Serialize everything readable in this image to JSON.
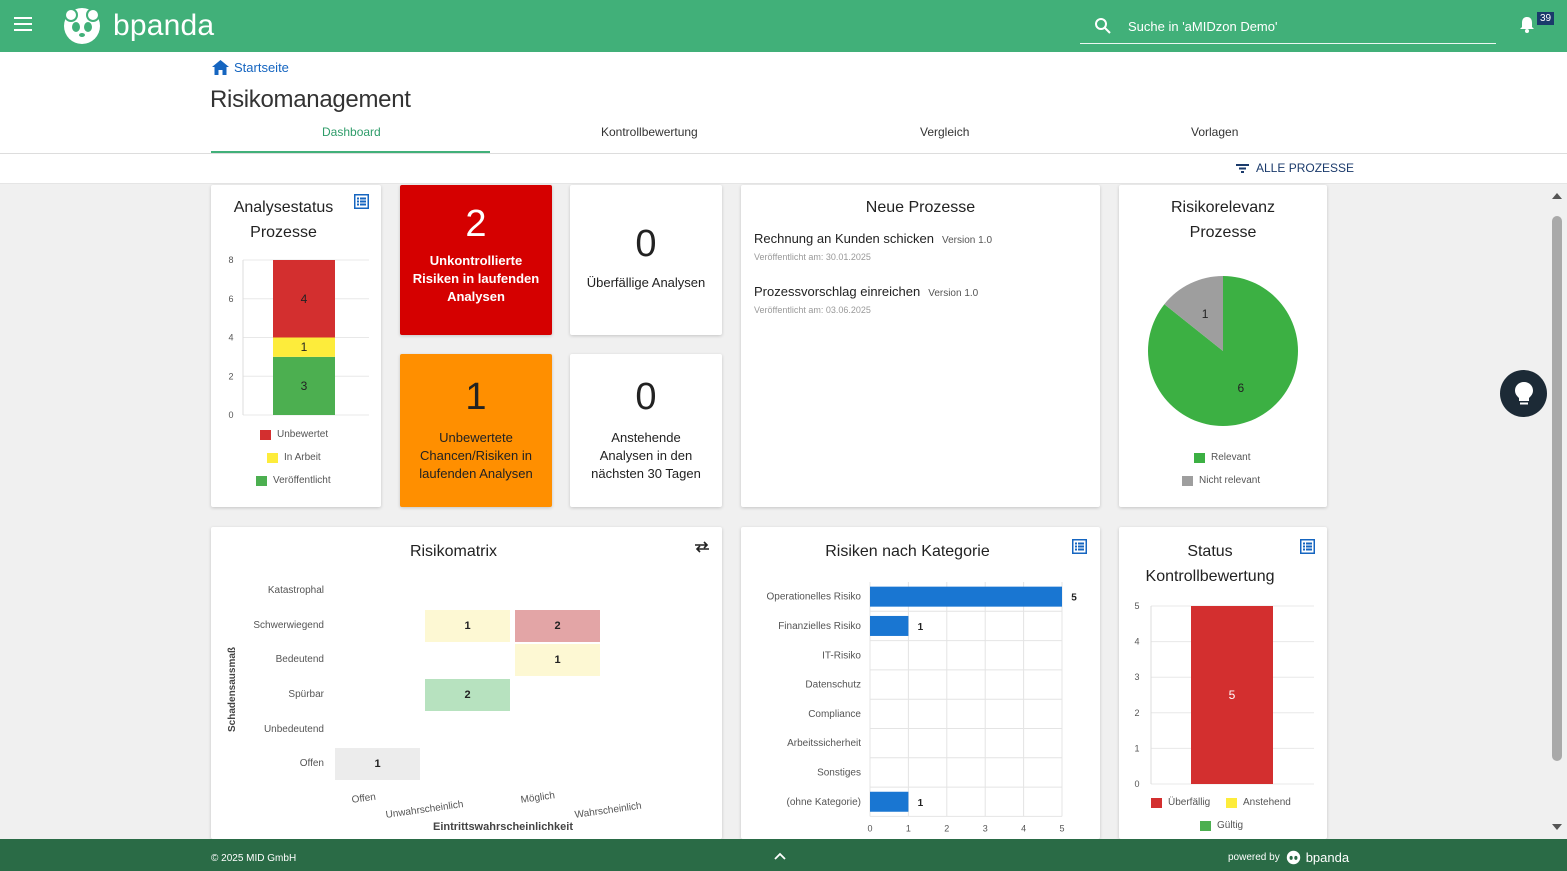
{
  "header": {
    "logo": "bpanda",
    "search_placeholder": "Suche in 'aMIDzon Demo'",
    "notification_count": "39"
  },
  "breadcrumb": {
    "home": "Startseite"
  },
  "page_title": "Risikomanagement",
  "tabs": [
    {
      "label": "Dashboard",
      "active": true
    },
    {
      "label": "Kontrollbewertung"
    },
    {
      "label": "Vergleich"
    },
    {
      "label": "Vorlagen"
    }
  ],
  "filter_label": "ALLE PROZESSE",
  "analysestatus": {
    "title_line1": "Analysestatus",
    "title_line2": "Prozesse",
    "yticks": [
      "8",
      "6",
      "4",
      "2",
      "0"
    ],
    "legend": [
      {
        "label": "Unbewertet",
        "color": "#d32f2f"
      },
      {
        "label": "In Arbeit",
        "color": "#fdec3b"
      },
      {
        "label": "Veröffentlicht",
        "color": "#4caf50"
      }
    ]
  },
  "kpis": [
    {
      "value": "2",
      "label": "Unkontrollierte Risiken in laufenden Analysen",
      "bg": "#d50000"
    },
    {
      "value": "0",
      "label": "Überfällige Analysen",
      "bg": "#ffffff"
    },
    {
      "value": "1",
      "label": "Unbewertete Chancen/Risiken in laufenden Analysen",
      "bg": "#ff8f00"
    },
    {
      "value": "0",
      "label": "Anstehende Analysen in den nächsten 30 Tagen",
      "bg": "#ffffff"
    }
  ],
  "neue_prozesse": {
    "title": "Neue Prozesse",
    "items": [
      {
        "name": "Rechnung an Kunden schicken",
        "version": "Version 1.0",
        "date": "Veröffentlicht am: 30.01.2025"
      },
      {
        "name": "Prozessvorschlag einreichen",
        "version": "Version 1.0",
        "date": "Veröffentlicht am: 03.06.2025"
      }
    ]
  },
  "risikorelevanz": {
    "title_line1": "Risikorelevanz",
    "title_line2": "Prozesse",
    "legend": [
      {
        "label": "Relevant",
        "color": "#3cb043"
      },
      {
        "label": "Nicht relevant",
        "color": "#9e9e9e"
      }
    ]
  },
  "risikomatrix": {
    "title": "Risikomatrix",
    "y_axis_label": "Schadensausmaß",
    "x_axis_label": "Eintrittswahrscheinlichkeit",
    "rows": [
      "Katastrophal",
      "Schwerwiegend",
      "Bedeutend",
      "Spürbar",
      "Unbedeutend",
      "Offen"
    ],
    "cols": [
      "Offen",
      "Unwahrscheinlich",
      "Möglich",
      "Wahrscheinlich"
    ],
    "cells": [
      {
        "row": 1,
        "col": 1,
        "value": "1",
        "color": "#fdf8d3"
      },
      {
        "row": 1,
        "col": 2,
        "value": "2",
        "color": "#e3a5a6"
      },
      {
        "row": 2,
        "col": 2,
        "value": "1",
        "color": "#fdf8d3"
      },
      {
        "row": 3,
        "col": 1,
        "value": "2",
        "color": "#b7e2bf"
      },
      {
        "row": 5,
        "col": 0,
        "value": "1",
        "color": "#ececec"
      }
    ]
  },
  "risiken_kategorie": {
    "title": "Risiken nach Kategorie"
  },
  "status_kontroll": {
    "title_line1": "Status",
    "title_line2": "Kontrollbewertung",
    "legend": [
      {
        "label": "Überfällig",
        "color": "#d32f2f"
      },
      {
        "label": "Anstehend",
        "color": "#fdec3b"
      },
      {
        "label": "Gültig",
        "color": "#4caf50"
      }
    ]
  },
  "chart_data": [
    {
      "type": "bar",
      "stacked": true,
      "categories": [
        ""
      ],
      "series": [
        {
          "name": "Veröffentlicht",
          "values": [
            3
          ]
        },
        {
          "name": "In Arbeit",
          "values": [
            1
          ]
        },
        {
          "name": "Unbewertet",
          "values": [
            4
          ]
        }
      ],
      "ylim": [
        0,
        8
      ]
    },
    {
      "type": "pie",
      "labels": [
        "Relevant",
        "Nicht relevant"
      ],
      "values": [
        6,
        1
      ]
    },
    {
      "type": "bar",
      "orientation": "horizontal",
      "categories": [
        "Operationelles Risiko",
        "Finanzielles Risiko",
        "IT-Risiko",
        "Datenschutz",
        "Compliance",
        "Arbeitssicherheit",
        "Sonstiges",
        "(ohne Kategorie)"
      ],
      "values": [
        5,
        1,
        0,
        0,
        0,
        0,
        0,
        1
      ],
      "xlim": [
        0,
        5
      ],
      "xticks": [
        "0",
        "1",
        "2",
        "3",
        "4",
        "5"
      ]
    },
    {
      "type": "bar",
      "categories": [
        ""
      ],
      "series": [
        {
          "name": "Überfällig",
          "values": [
            5
          ]
        }
      ],
      "ylim": [
        0,
        5
      ],
      "yticks": [
        "5",
        "4",
        "3",
        "2",
        "1",
        "0"
      ]
    }
  ],
  "footer": {
    "copyright": "© 2025 MID GmbH",
    "powered": "powered by",
    "brand": "bpanda"
  }
}
